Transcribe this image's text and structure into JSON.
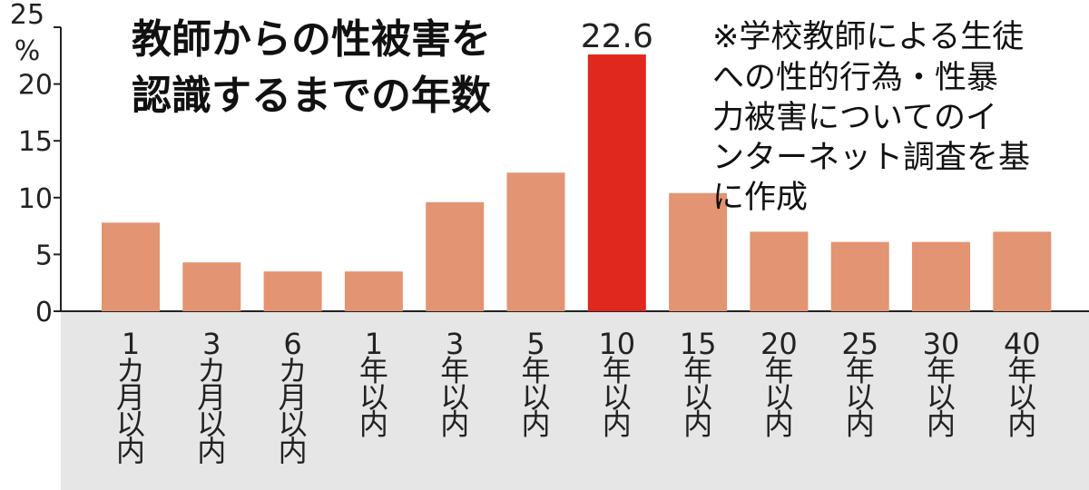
{
  "chart_data": {
    "type": "bar",
    "title_lines": [
      "教師からの性被害を",
      "認識するまでの年数"
    ],
    "note_lines": [
      "※学校教師による生徒",
      "への性的行為・性暴",
      "力被害についてのイ",
      "ンターネット調査を基",
      "に作成"
    ],
    "unit_percent": "%",
    "y_ticks": [
      "0",
      "5",
      "10",
      "15",
      "20",
      "25"
    ],
    "ylim": [
      0,
      25
    ],
    "categories": [
      [
        "1",
        "カ",
        "月",
        "以",
        "内"
      ],
      [
        "3",
        "カ",
        "月",
        "以",
        "内"
      ],
      [
        "6",
        "カ",
        "月",
        "以",
        "内"
      ],
      [
        "1",
        "年",
        "以",
        "内"
      ],
      [
        "3",
        "年",
        "以",
        "内"
      ],
      [
        "5",
        "年",
        "以",
        "内"
      ],
      [
        "10",
        "年",
        "以",
        "内"
      ],
      [
        "15",
        "年",
        "以",
        "内"
      ],
      [
        "20",
        "年",
        "以",
        "内"
      ],
      [
        "25",
        "年",
        "以",
        "内"
      ],
      [
        "30",
        "年",
        "以",
        "内"
      ],
      [
        "40",
        "年",
        "以",
        "内"
      ]
    ],
    "values": [
      7.8,
      4.3,
      3.5,
      3.5,
      9.6,
      12.2,
      22.6,
      10.4,
      7.0,
      6.1,
      6.1,
      7.0
    ],
    "highlight_label": "22.6",
    "highlight_index": 6,
    "colors": {
      "bar": "#e39472",
      "highlight": "#e0281e",
      "category_band": "#e6e6e6"
    }
  }
}
